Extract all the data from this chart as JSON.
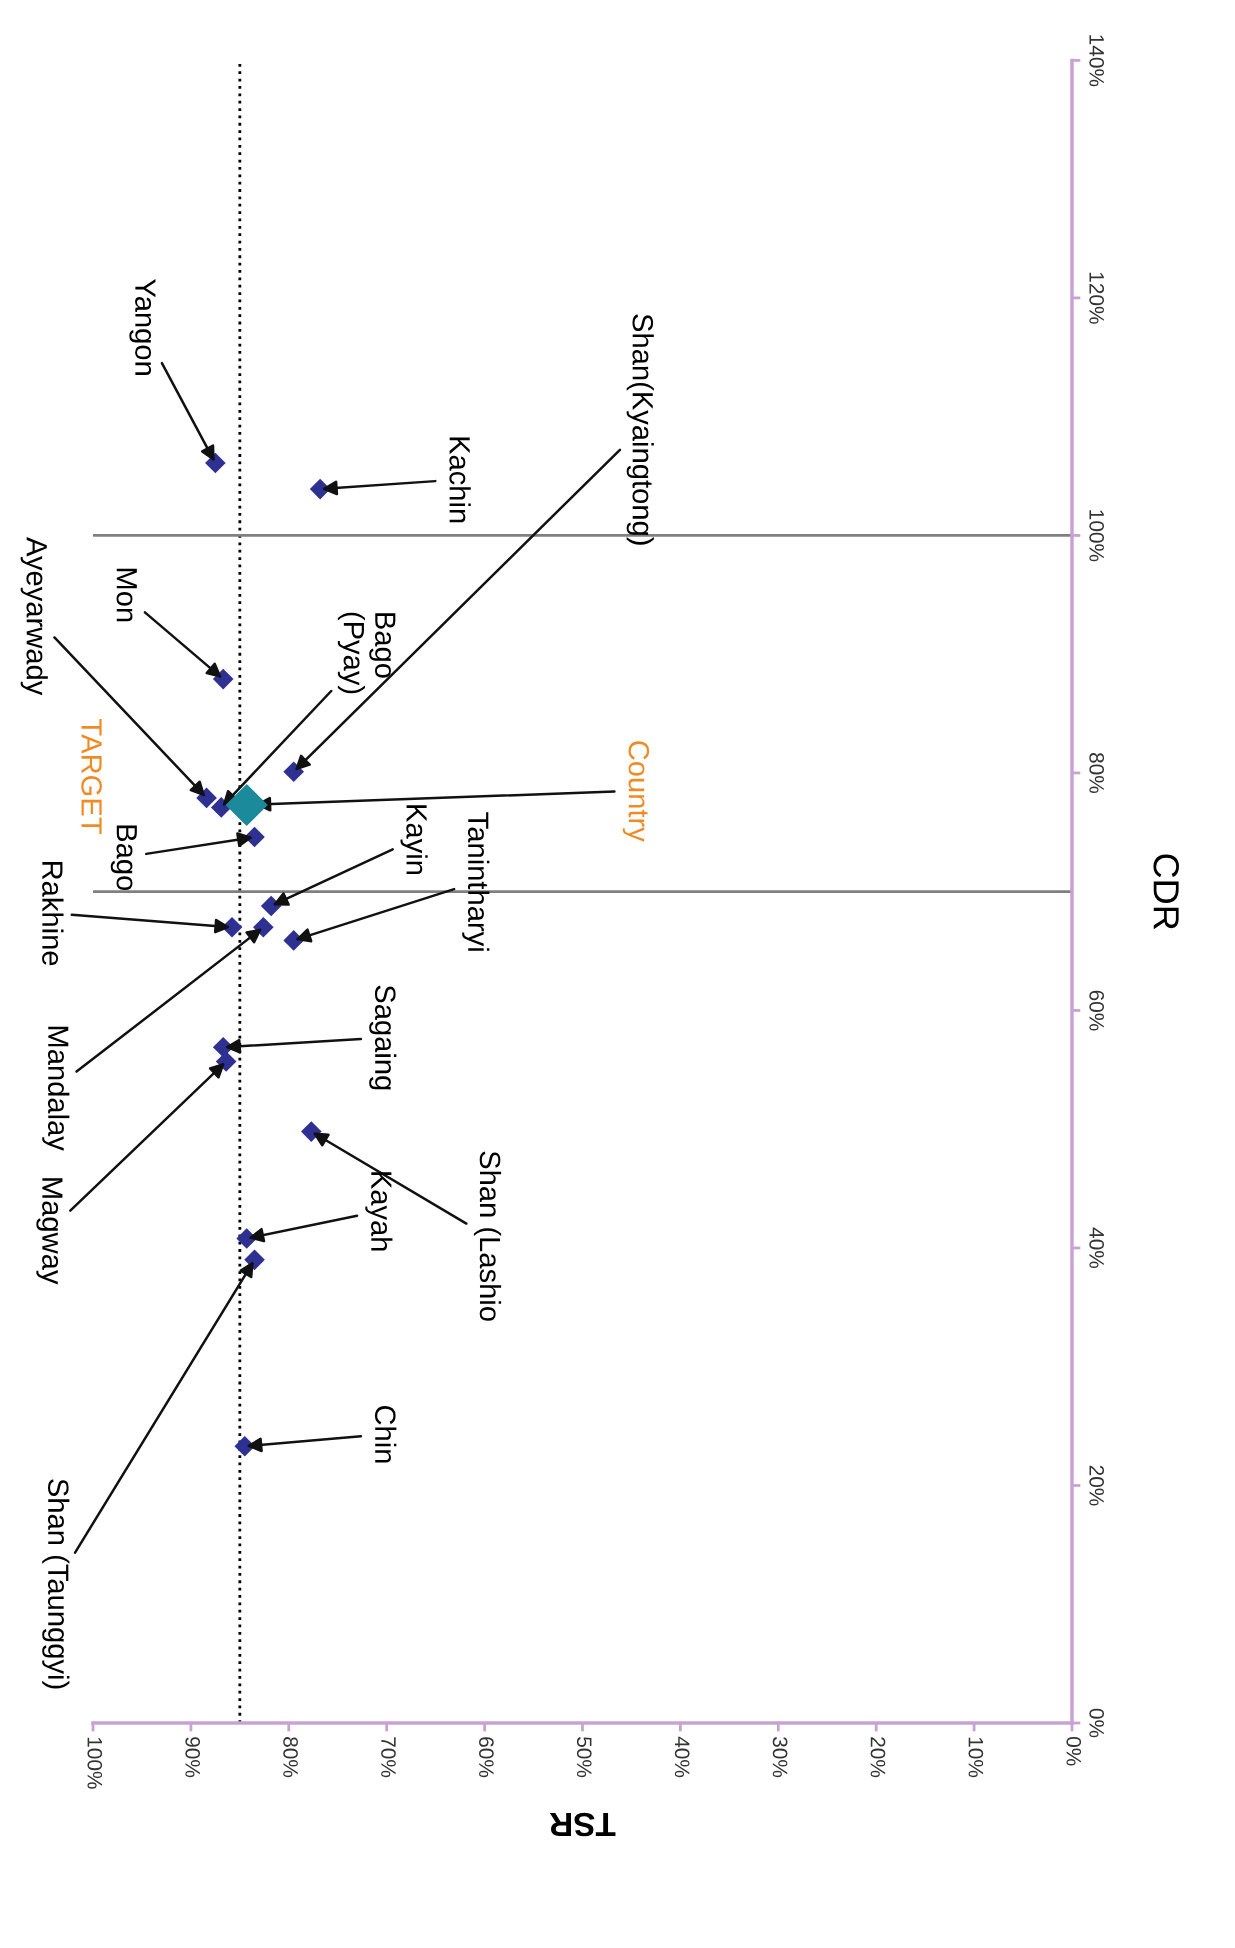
{
  "chart_data": {
    "type": "scatter",
    "xlabel": "TSR",
    "ylabel": "CDR",
    "xlim": [
      100,
      0
    ],
    "ylim": [
      0,
      140
    ],
    "xticks": [
      {
        "value": 100,
        "label": "100%"
      },
      {
        "value": 90,
        "label": "90%"
      },
      {
        "value": 80,
        "label": "80%"
      },
      {
        "value": 70,
        "label": "70%"
      },
      {
        "value": 60,
        "label": "60%"
      },
      {
        "value": 50,
        "label": "50%"
      },
      {
        "value": 40,
        "label": "40%"
      },
      {
        "value": 30,
        "label": "30%"
      },
      {
        "value": 20,
        "label": "20%"
      },
      {
        "value": 10,
        "label": "10%"
      },
      {
        "value": 0,
        "label": "0%"
      }
    ],
    "yticks": [
      {
        "value": 0,
        "label": "0%"
      },
      {
        "value": 20,
        "label": "20%"
      },
      {
        "value": 40,
        "label": "40%"
      },
      {
        "value": 60,
        "label": "60%"
      },
      {
        "value": 80,
        "label": "80%"
      },
      {
        "value": 100,
        "label": "100%"
      },
      {
        "value": 120,
        "label": "120%"
      },
      {
        "value": 140,
        "label": "140%"
      }
    ],
    "marker": "diamond",
    "grid": false,
    "legend": false,
    "series": [
      {
        "color": "#2e3192",
        "x": [
          87.5,
          76.8,
          86.7,
          79.5,
          88.4,
          86.9,
          83.5,
          81.8,
          85.8,
          82.6,
          79.5,
          86.7,
          86.4,
          77.7,
          84.3,
          83.5,
          84.5
        ],
        "values": [
          106.1,
          103.9,
          87.9,
          80.1,
          77.9,
          77.1,
          74.6,
          68.8,
          67.0,
          67.0,
          65.9,
          56.9,
          55.7,
          49.8,
          40.8,
          39.0,
          23.3
        ]
      },
      {
        "name": "Country",
        "color": "#1b8a9a",
        "x": [
          84.3
        ],
        "values": [
          77.3
        ]
      }
    ],
    "ref_lines": [
      {
        "axis": "x",
        "value": 85,
        "color": "#000000",
        "line_style": "dotted"
      },
      {
        "axis": "y",
        "value": 70,
        "color": "#808080",
        "line_style": "solid"
      },
      {
        "axis": "y",
        "value": 100,
        "color": "#808080",
        "line_style": "solid"
      }
    ],
    "annotations": [
      {
        "text": "Yangon",
        "x": 87.5,
        "y": 106.1
      },
      {
        "text": "Kachin",
        "x": 76.8,
        "y": 103.9
      },
      {
        "text": "Mon",
        "x": 86.7,
        "y": 87.9
      },
      {
        "text": "Shan(Kyaingtong)",
        "x": 79.5,
        "y": 80.1
      },
      {
        "text": "Ayeyarwady",
        "x": 88.4,
        "y": 77.9
      },
      {
        "text": "Bago\n(Pyay)",
        "x": 86.9,
        "y": 77.1
      },
      {
        "text": "Bago",
        "x": 83.5,
        "y": 74.6
      },
      {
        "text": "Kayin",
        "x": 81.8,
        "y": 68.8
      },
      {
        "text": "Rakhine",
        "x": 85.8,
        "y": 67.0
      },
      {
        "text": "Mandalay",
        "x": 82.6,
        "y": 67.0
      },
      {
        "text": "Tanintharyi",
        "x": 79.5,
        "y": 65.9
      },
      {
        "text": "Sagaing",
        "x": 86.7,
        "y": 56.9
      },
      {
        "text": "Magway",
        "x": 86.4,
        "y": 55.7
      },
      {
        "text": "Shan (Lashio",
        "x": 77.7,
        "y": 49.8
      },
      {
        "text": "Kayah",
        "x": 84.3,
        "y": 40.8
      },
      {
        "text": "Shan (Taunggyi)",
        "x": 83.5,
        "y": 39.0
      },
      {
        "text": "Chin",
        "x": 84.5,
        "y": 23.3
      },
      "TARGET"
    ]
  }
}
